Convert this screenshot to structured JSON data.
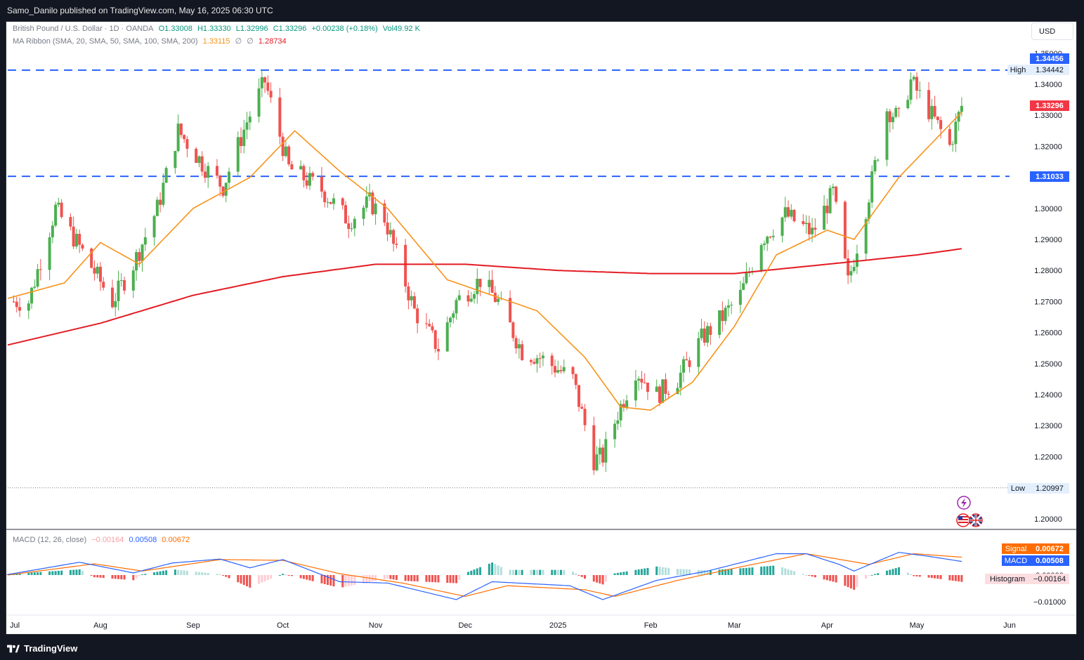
{
  "header": {
    "publisher": "Samo_Danilo published on TradingView.com, May 16, 2025 06:30 UTC"
  },
  "currency_button": "USD",
  "symbol_legend": {
    "name": "British Pound / U.S. Dollar · 1D · OANDA",
    "open": "O1.33008",
    "high": "H1.33330",
    "low": "L1.32996",
    "close": "C1.33296",
    "change": "+0.00238 (+0.18%)",
    "volume": "Vol49.92 K"
  },
  "ma_legend": {
    "name": "MA Ribbon (SMA, 20, SMA, 50, SMA, 100, SMA, 200)",
    "v20": "1.33115",
    "v50": "∅",
    "v100": "∅",
    "v200": "1.28734"
  },
  "macd_legend": {
    "name": "MACD (12, 26, close)",
    "hist": "−0.00164",
    "macd": "0.00508",
    "signal": "0.00672"
  },
  "price_labels": {
    "resistance": "1.34456",
    "high_tag": "High",
    "high_value": "1.34442",
    "last": "1.33296",
    "support": "1.31033",
    "low_tag": "Low",
    "low_value": "1.20997",
    "signal_tag": "Signal",
    "signal_value": "0.00672",
    "macd_tag": "MACD",
    "macd_value": "0.00508",
    "hist_tag": "Histogram",
    "hist_value": "−0.00164"
  },
  "footer": {
    "brand": "TradingView"
  },
  "colors": {
    "up": "#26a69a",
    "up_candle": "#4caf50",
    "down": "#ef5350",
    "sma20": "#f7931a",
    "sma200": "#e31b23",
    "level_line": "#2962ff",
    "macd_line": "#2962ff",
    "signal_line": "#ff6d00",
    "hist_up": "#26a69a",
    "hist_down": "#ef5350"
  },
  "icons": [
    "lightning-icon",
    "us-flag-icon",
    "uk-flag-icon",
    "tradingview-logo-icon"
  ],
  "chart_data": {
    "type": "candlestick",
    "title": "British Pound / U.S. Dollar · 1D · OANDA",
    "price_ticks": [
      "1.35000",
      "1.34000",
      "1.33000",
      "1.32000",
      "1.31000",
      "1.30000",
      "1.29000",
      "1.28000",
      "1.27000",
      "1.26000",
      "1.25000",
      "1.24000",
      "1.23000",
      "1.22000",
      "1.20000"
    ],
    "price_tick_values": [
      1.35,
      1.34,
      1.33,
      1.32,
      1.31,
      1.3,
      1.29,
      1.28,
      1.27,
      1.26,
      1.25,
      1.24,
      1.23,
      1.22,
      1.2
    ],
    "x_ticks": [
      "Jul",
      "Aug",
      "Sep",
      "Oct",
      "Nov",
      "Dec",
      "2025",
      "Feb",
      "Mar",
      "Apr",
      "May",
      "Jun"
    ],
    "x_tick_dates": [
      "2024-07-01",
      "2024-08-01",
      "2024-09-01",
      "2024-10-01",
      "2024-11-01",
      "2024-12-01",
      "2025-01-01",
      "2025-02-01",
      "2025-03-01",
      "2025-04-01",
      "2025-05-01",
      "2025-06-01"
    ],
    "macd_ticks": [
      "0.00000",
      "−0.01000"
    ],
    "macd_tick_values": [
      0.0,
      -0.01
    ],
    "levels": {
      "resistance": 1.34456,
      "support": 1.31033,
      "period_high": 1.34442,
      "period_low": 1.20997,
      "last": 1.33296
    },
    "price_path": [
      [
        "2024-07-08",
        1.27
      ],
      [
        "2024-07-17",
        1.3
      ],
      [
        "2024-07-26",
        1.286
      ],
      [
        "2024-08-05",
        1.27
      ],
      [
        "2024-08-12",
        1.282
      ],
      [
        "2024-08-20",
        1.3
      ],
      [
        "2024-08-27",
        1.325
      ],
      [
        "2024-09-06",
        1.312
      ],
      [
        "2024-09-11",
        1.307
      ],
      [
        "2024-09-19",
        1.328
      ],
      [
        "2024-09-25",
        1.341
      ],
      [
        "2024-10-03",
        1.313
      ],
      [
        "2024-10-14",
        1.306
      ],
      [
        "2024-10-23",
        1.296
      ],
      [
        "2024-10-30",
        1.302
      ],
      [
        "2024-11-04",
        1.297
      ],
      [
        "2024-11-14",
        1.267
      ],
      [
        "2024-11-22",
        1.255
      ],
      [
        "2024-11-28",
        1.27
      ],
      [
        "2024-12-06",
        1.277
      ],
      [
        "2024-12-12",
        1.27
      ],
      [
        "2024-12-20",
        1.254
      ],
      [
        "2024-12-26",
        1.252
      ],
      [
        "2025-01-06",
        1.245
      ],
      [
        "2025-01-13",
        1.219
      ],
      [
        "2025-01-16",
        1.22
      ],
      [
        "2025-01-21",
        1.234
      ],
      [
        "2025-01-27",
        1.248
      ],
      [
        "2025-02-03",
        1.24
      ],
      [
        "2025-02-10",
        1.245
      ],
      [
        "2025-02-18",
        1.258
      ],
      [
        "2025-02-25",
        1.265
      ],
      [
        "2025-03-03",
        1.272
      ],
      [
        "2025-03-10",
        1.29
      ],
      [
        "2025-03-18",
        1.298
      ],
      [
        "2025-03-27",
        1.292
      ],
      [
        "2025-04-03",
        1.305
      ],
      [
        "2025-04-08",
        1.276
      ],
      [
        "2025-04-14",
        1.3
      ],
      [
        "2025-04-21",
        1.332
      ],
      [
        "2025-04-25",
        1.329
      ],
      [
        "2025-04-29",
        1.341
      ],
      [
        "2025-05-06",
        1.33
      ],
      [
        "2025-05-12",
        1.32
      ],
      [
        "2025-05-16",
        1.333
      ]
    ],
    "sma20": [
      [
        "2024-07-01",
        1.271
      ],
      [
        "2024-07-20",
        1.276
      ],
      [
        "2024-08-01",
        1.289
      ],
      [
        "2024-08-14",
        1.282
      ],
      [
        "2024-09-01",
        1.3
      ],
      [
        "2024-09-20",
        1.31
      ],
      [
        "2024-10-05",
        1.325
      ],
      [
        "2024-10-20",
        1.312
      ],
      [
        "2024-11-05",
        1.3
      ],
      [
        "2024-11-25",
        1.277
      ],
      [
        "2024-12-10",
        1.272
      ],
      [
        "2024-12-25",
        1.267
      ],
      [
        "2025-01-10",
        1.252
      ],
      [
        "2025-01-22",
        1.236
      ],
      [
        "2025-02-01",
        1.235
      ],
      [
        "2025-02-15",
        1.244
      ],
      [
        "2025-03-01",
        1.262
      ],
      [
        "2025-03-15",
        1.285
      ],
      [
        "2025-04-01",
        1.293
      ],
      [
        "2025-04-10",
        1.29
      ],
      [
        "2025-04-25",
        1.31
      ],
      [
        "2025-05-16",
        1.331
      ]
    ],
    "sma200": [
      [
        "2024-07-01",
        1.256
      ],
      [
        "2024-08-01",
        1.263
      ],
      [
        "2024-09-01",
        1.272
      ],
      [
        "2024-10-01",
        1.278
      ],
      [
        "2024-11-01",
        1.282
      ],
      [
        "2024-12-01",
        1.282
      ],
      [
        "2025-01-01",
        1.28
      ],
      [
        "2025-02-01",
        1.279
      ],
      [
        "2025-03-01",
        1.279
      ],
      [
        "2025-04-01",
        1.282
      ],
      [
        "2025-05-01",
        1.285
      ],
      [
        "2025-05-16",
        1.287
      ]
    ],
    "macd": [
      [
        "2024-07-01",
        0.0002
      ],
      [
        "2024-07-25",
        0.0048
      ],
      [
        "2024-08-12",
        0.0008
      ],
      [
        "2024-08-25",
        0.0045
      ],
      [
        "2024-09-10",
        0.006
      ],
      [
        "2024-09-20",
        0.0027
      ],
      [
        "2024-10-01",
        0.0058
      ],
      [
        "2024-10-20",
        -0.0025
      ],
      [
        "2024-11-05",
        -0.003
      ],
      [
        "2024-11-28",
        -0.0092
      ],
      [
        "2024-12-10",
        -0.0025
      ],
      [
        "2025-01-05",
        -0.004
      ],
      [
        "2025-01-16",
        -0.0092
      ],
      [
        "2025-02-03",
        -0.002
      ],
      [
        "2025-02-20",
        0.0015
      ],
      [
        "2025-03-15",
        0.008
      ],
      [
        "2025-03-25",
        0.008
      ],
      [
        "2025-04-05",
        0.004
      ],
      [
        "2025-04-10",
        0.0015
      ],
      [
        "2025-04-25",
        0.0085
      ],
      [
        "2025-05-05",
        0.007
      ],
      [
        "2025-05-16",
        0.0051
      ]
    ],
    "signal": [
      [
        "2024-07-01",
        0.0
      ],
      [
        "2024-07-30",
        0.0042
      ],
      [
        "2024-08-15",
        0.0015
      ],
      [
        "2024-09-10",
        0.0058
      ],
      [
        "2024-10-01",
        0.0055
      ],
      [
        "2024-10-20",
        0.0005
      ],
      [
        "2024-11-10",
        -0.003
      ],
      [
        "2024-12-01",
        -0.008
      ],
      [
        "2024-12-15",
        -0.004
      ],
      [
        "2025-01-10",
        -0.0055
      ],
      [
        "2025-01-20",
        -0.008
      ],
      [
        "2025-02-10",
        -0.002
      ],
      [
        "2025-03-05",
        0.0035
      ],
      [
        "2025-03-25",
        0.008
      ],
      [
        "2025-04-15",
        0.004
      ],
      [
        "2025-04-30",
        0.008
      ],
      [
        "2025-05-16",
        0.0067
      ]
    ]
  }
}
